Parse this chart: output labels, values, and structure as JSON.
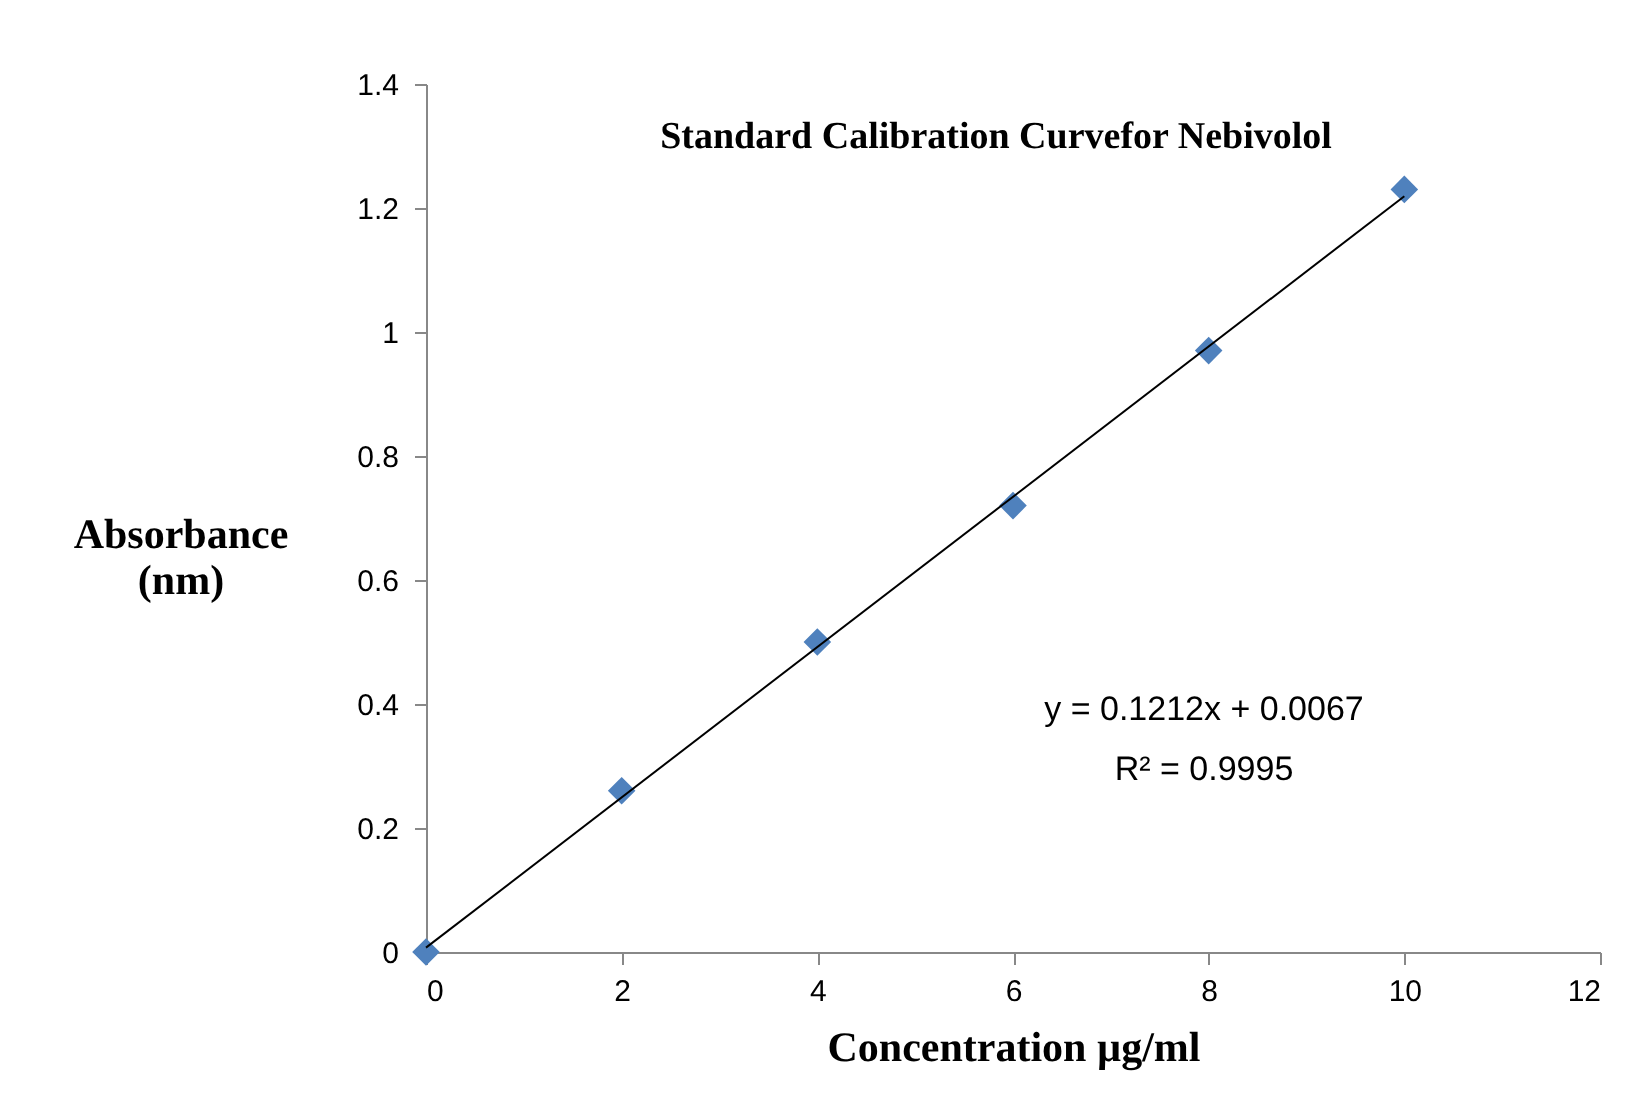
{
  "chart_data": {
    "type": "scatter",
    "title": "Standard Calibration Curvefor Nebivolol",
    "xlabel": "Concentration  µg/ml",
    "ylabel": "Absorbance\n(nm)",
    "x": [
      0,
      2,
      4,
      6,
      8,
      10
    ],
    "series": [
      {
        "color": "#4f81bd",
        "values": [
          0,
          0.26,
          0.5,
          0.72,
          0.97,
          1.23
        ],
        "marker": "diamond"
      },
      {
        "type": "line",
        "color": "#000000",
        "x": [
          0,
          10
        ],
        "values": [
          0.007,
          1.219
        ],
        "marker": "none",
        "line_style": "solid"
      }
    ],
    "xlim": [
      0,
      12
    ],
    "xticks": [
      0,
      2,
      4,
      6,
      8,
      10,
      12
    ],
    "ylim": [
      0,
      1.4
    ],
    "yticks": [
      0,
      0.2,
      0.4,
      0.6,
      0.8,
      1,
      1.2,
      1.4
    ],
    "grid": false,
    "annotations": [
      "y = 0.1212x + 0.0067",
      "R² = 0.9995"
    ]
  }
}
